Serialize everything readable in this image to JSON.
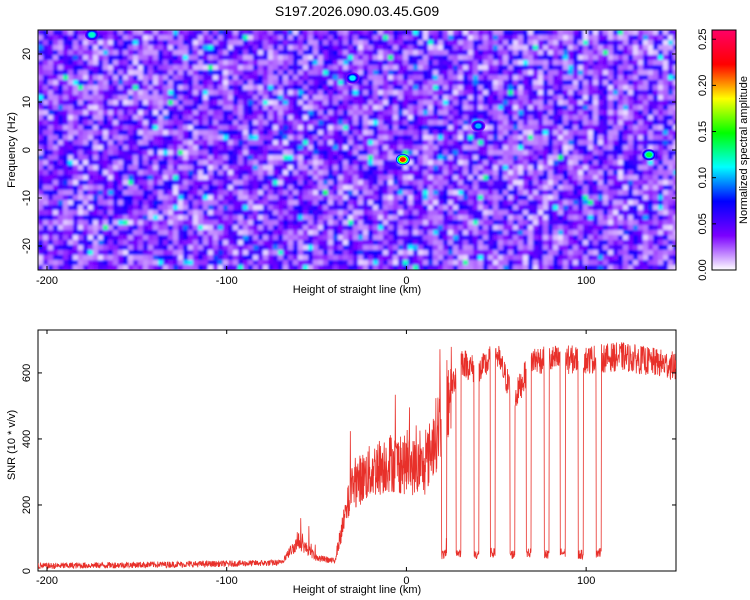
{
  "title": "S197.2026.090.03.45.G09",
  "chart_data": [
    {
      "type": "heatmap",
      "xlabel": "Height of straight line (km)",
      "ylabel": "Frequency (Hz)",
      "xlim": [
        -205,
        150
      ],
      "ylim": [
        -25,
        25
      ],
      "xticks": [
        -200,
        -100,
        0,
        100
      ],
      "yticks": [
        -20,
        -10,
        0,
        10,
        20
      ],
      "colorbar": {
        "label": "Normalized spectral amplitude",
        "range": [
          0,
          0.26
        ],
        "ticks": [
          "0.00",
          "0.05",
          "0.10",
          "0.15",
          "0.20",
          "0.25"
        ],
        "colors": [
          "#ffffff",
          "#7b00ff",
          "#0000ff",
          "#00ffff",
          "#00ff00",
          "#ffff00",
          "#ff0000",
          "#ff0066"
        ]
      },
      "background_level": 0.04,
      "peaks": [
        {
          "x": -2,
          "y": -2,
          "value": 0.22
        },
        {
          "x": 135,
          "y": -1,
          "value": 0.14
        },
        {
          "x": -175,
          "y": 24,
          "value": 0.12
        },
        {
          "x": -30,
          "y": 15,
          "value": 0.11
        },
        {
          "x": 40,
          "y": 5,
          "value": 0.1
        }
      ]
    },
    {
      "type": "line",
      "xlabel": "Height of straight line (km)",
      "ylabel": "SNR (10 * v/v)",
      "xlim": [
        -205,
        150
      ],
      "ylim": [
        0,
        730
      ],
      "xticks": [
        -200,
        -100,
        0,
        100
      ],
      "yticks": [
        0,
        200,
        400,
        600
      ],
      "color": "#e8302a",
      "profile": [
        {
          "x": -205,
          "y": 15
        },
        {
          "x": -100,
          "y": 22
        },
        {
          "x": -70,
          "y": 25
        },
        {
          "x": -60,
          "y": 90
        },
        {
          "x": -50,
          "y": 40
        },
        {
          "x": -40,
          "y": 30
        },
        {
          "x": -30,
          "y": 260
        },
        {
          "x": -20,
          "y": 300
        },
        {
          "x": -10,
          "y": 330
        },
        {
          "x": 0,
          "y": 320
        },
        {
          "x": 10,
          "y": 310
        },
        {
          "x": 20,
          "y": 470
        },
        {
          "x": 30,
          "y": 640
        },
        {
          "x": 40,
          "y": 600
        },
        {
          "x": 50,
          "y": 660
        },
        {
          "x": 60,
          "y": 520
        },
        {
          "x": 70,
          "y": 640
        },
        {
          "x": 80,
          "y": 640
        },
        {
          "x": 100,
          "y": 640
        },
        {
          "x": 120,
          "y": 650
        },
        {
          "x": 150,
          "y": 620
        }
      ],
      "dropouts": [
        {
          "x": 21,
          "y": 50
        },
        {
          "x": 29,
          "y": 55
        },
        {
          "x": 39,
          "y": 50
        },
        {
          "x": 48,
          "y": 55
        },
        {
          "x": 59,
          "y": 50
        },
        {
          "x": 68,
          "y": 55
        },
        {
          "x": 78,
          "y": 50
        },
        {
          "x": 87,
          "y": 55
        },
        {
          "x": 97,
          "y": 50
        },
        {
          "x": 107,
          "y": 55
        }
      ]
    }
  ]
}
